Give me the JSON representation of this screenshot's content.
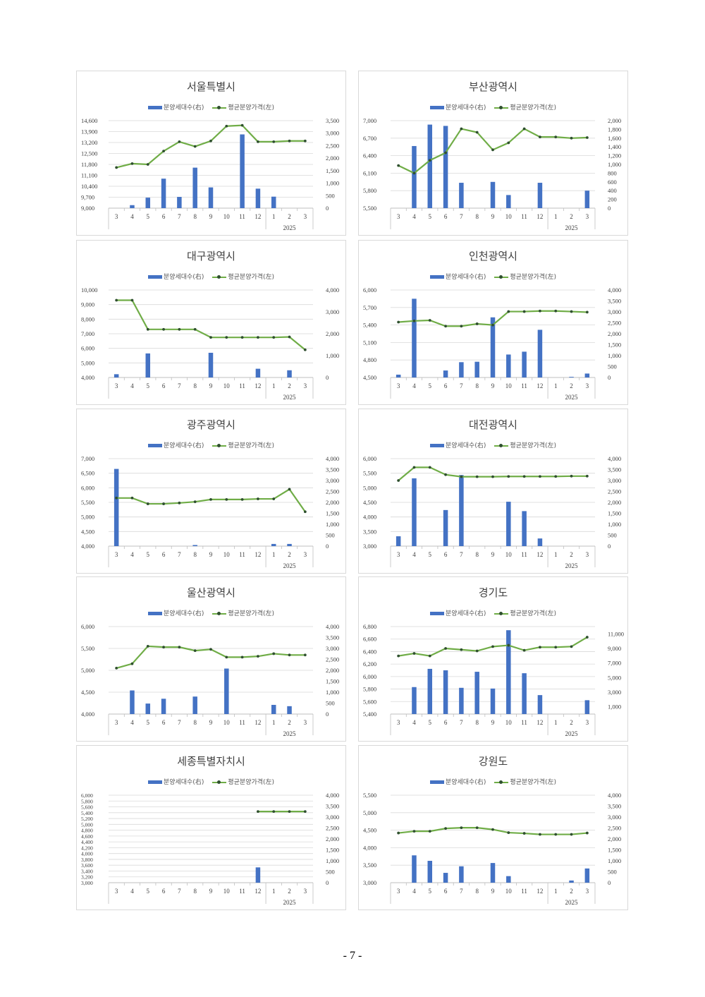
{
  "page_number": "- 7 -",
  "legend": {
    "bar_label": "분양세대수(右)",
    "line_label": "평균분양가격(左)"
  },
  "colors": {
    "bar": "#4472c4",
    "line": "#70ad47",
    "marker": "#2f4f2f",
    "grid": "#d9d9d9"
  },
  "x_ticks": [
    "3",
    "4",
    "5",
    "6",
    "7",
    "8",
    "9",
    "10",
    "11",
    "12",
    "1",
    "2",
    "3"
  ],
  "year_label": "2025",
  "chart_data": [
    {
      "type": "bar+line",
      "title": "서울특별시",
      "left_axis": {
        "min": 9000,
        "max": 14600,
        "ticks": [
          "9,000",
          "9,700",
          "10,400",
          "11,100",
          "11,800",
          "12,500",
          "13,200",
          "13,900",
          "14,600"
        ]
      },
      "right_axis": {
        "min": 0,
        "max": 3500,
        "ticks": [
          "0",
          "500",
          "1,000",
          "1,500",
          "2,000",
          "2,500",
          "3,000",
          "3,500"
        ]
      },
      "series": [
        {
          "name": "분양세대수(右)",
          "axis": "right",
          "values": [
            0,
            120,
            420,
            1180,
            450,
            1620,
            830,
            0,
            2950,
            780,
            460,
            0,
            0
          ]
        },
        {
          "name": "평균분양가격(左)",
          "axis": "left",
          "values": [
            11600,
            11850,
            11800,
            12650,
            13250,
            12950,
            13300,
            14250,
            14300,
            13250,
            13250,
            13300,
            13300
          ]
        }
      ]
    },
    {
      "type": "bar+line",
      "title": "부산광역시",
      "left_axis": {
        "min": 5500,
        "max": 7000,
        "ticks": [
          "5,500",
          "5,800",
          "6,100",
          "6,400",
          "6,700",
          "7,000"
        ]
      },
      "right_axis": {
        "min": 0,
        "max": 2000,
        "ticks": [
          "0",
          "200",
          "400",
          "600",
          "800",
          "1,000",
          "1,200",
          "1,400",
          "1,600",
          "1,800",
          "2,000"
        ]
      },
      "series": [
        {
          "name": "분양세대수(右)",
          "axis": "right",
          "values": [
            0,
            1420,
            1910,
            1880,
            580,
            0,
            600,
            300,
            0,
            580,
            0,
            0,
            400
          ]
        },
        {
          "name": "평균분양가격(左)",
          "axis": "left",
          "values": [
            6230,
            6100,
            6320,
            6450,
            6860,
            6800,
            6500,
            6620,
            6860,
            6720,
            6720,
            6700,
            6710
          ]
        }
      ]
    },
    {
      "type": "bar+line",
      "title": "대구광역시",
      "left_axis": {
        "min": 4000,
        "max": 10000,
        "ticks": [
          "4,000",
          "5,000",
          "6,000",
          "7,000",
          "8,000",
          "9,000",
          "10,000"
        ]
      },
      "right_axis": {
        "min": 0,
        "max": 4000,
        "ticks": [
          "0",
          "1,000",
          "2,000",
          "3,000",
          "4,000"
        ]
      },
      "series": [
        {
          "name": "분양세대수(右)",
          "axis": "right",
          "values": [
            150,
            0,
            1100,
            0,
            0,
            0,
            1130,
            0,
            0,
            400,
            0,
            330,
            0
          ]
        },
        {
          "name": "평균분양가격(左)",
          "axis": "left",
          "values": [
            9300,
            9300,
            7300,
            7300,
            7300,
            7300,
            6750,
            6750,
            6750,
            6750,
            6750,
            6780,
            5900
          ]
        }
      ]
    },
    {
      "type": "bar+line",
      "title": "인천광역시",
      "left_axis": {
        "min": 4500,
        "max": 6000,
        "ticks": [
          "4,500",
          "4,800",
          "5,100",
          "5,400",
          "5,700",
          "6,000"
        ]
      },
      "right_axis": {
        "min": 0,
        "max": 4000,
        "ticks": [
          "0",
          "500",
          "1,000",
          "1,500",
          "2,000",
          "2,500",
          "3,000",
          "3,500",
          "4,000"
        ]
      },
      "series": [
        {
          "name": "분양세대수(右)",
          "axis": "right",
          "values": [
            130,
            3600,
            0,
            320,
            700,
            720,
            2750,
            1050,
            1180,
            2180,
            0,
            30,
            180
          ]
        },
        {
          "name": "평균분양가격(左)",
          "axis": "left",
          "values": [
            5450,
            5470,
            5480,
            5380,
            5380,
            5420,
            5400,
            5630,
            5630,
            5640,
            5640,
            5630,
            5620
          ]
        }
      ]
    },
    {
      "type": "bar+line",
      "title": "광주광역시",
      "left_axis": {
        "min": 4000,
        "max": 7000,
        "ticks": [
          "4,000",
          "4,500",
          "5,000",
          "5,500",
          "6,000",
          "6,500",
          "7,000"
        ]
      },
      "right_axis": {
        "min": 0,
        "max": 4000,
        "ticks": [
          "0",
          "500",
          "1,000",
          "1,500",
          "2,000",
          "2,500",
          "3,000",
          "3,500",
          "4,000"
        ]
      },
      "series": [
        {
          "name": "분양세대수(右)",
          "axis": "right",
          "values": [
            3530,
            0,
            0,
            0,
            0,
            50,
            0,
            0,
            0,
            0,
            100,
            100,
            0
          ]
        },
        {
          "name": "평균분양가격(左)",
          "axis": "left",
          "values": [
            5650,
            5650,
            5450,
            5450,
            5480,
            5520,
            5600,
            5600,
            5600,
            5620,
            5620,
            5950,
            5180
          ]
        }
      ]
    },
    {
      "type": "bar+line",
      "title": "대전광역시",
      "left_axis": {
        "min": 3000,
        "max": 6000,
        "ticks": [
          "3,000",
          "3,500",
          "4,000",
          "4,500",
          "5,000",
          "5,500",
          "6,000"
        ]
      },
      "right_axis": {
        "min": 0,
        "max": 4000,
        "ticks": [
          "0",
          "500",
          "1,000",
          "1,500",
          "2,000",
          "2,500",
          "3,000",
          "3,500",
          "4,000"
        ]
      },
      "series": [
        {
          "name": "분양세대수(右)",
          "axis": "right",
          "values": [
            450,
            3100,
            0,
            1650,
            3250,
            0,
            0,
            2030,
            1600,
            350,
            0,
            0,
            0
          ]
        },
        {
          "name": "평균분양가격(左)",
          "axis": "left",
          "values": [
            5250,
            5700,
            5700,
            5450,
            5380,
            5380,
            5380,
            5390,
            5390,
            5390,
            5390,
            5400,
            5400
          ]
        }
      ]
    },
    {
      "type": "bar+line",
      "title": "울산광역시",
      "left_axis": {
        "min": 4000,
        "max": 6000,
        "ticks": [
          "4,000",
          "4,500",
          "5,000",
          "5,500",
          "6,000"
        ]
      },
      "right_axis": {
        "min": 0,
        "max": 4000,
        "ticks": [
          "0",
          "500",
          "1,000",
          "1,500",
          "2,000",
          "2,500",
          "3,000",
          "3,500",
          "4,000"
        ]
      },
      "series": [
        {
          "name": "분양세대수(右)",
          "axis": "right",
          "values": [
            0,
            1080,
            480,
            700,
            0,
            800,
            0,
            2080,
            0,
            0,
            420,
            360,
            0
          ]
        },
        {
          "name": "평균분양가격(左)",
          "axis": "left",
          "values": [
            5050,
            5150,
            5550,
            5530,
            5530,
            5450,
            5480,
            5300,
            5300,
            5320,
            5380,
            5350,
            5350
          ]
        }
      ]
    },
    {
      "type": "bar+line",
      "title": "경기도",
      "left_axis": {
        "min": 5400,
        "max": 6800,
        "ticks": [
          "5,400",
          "5,600",
          "5,800",
          "6,000",
          "6,200",
          "6,400",
          "6,600",
          "6,800"
        ]
      },
      "right_axis": {
        "min": 0,
        "max": 12000,
        "ticks": [
          "1,000",
          "3,000",
          "5,000",
          "7,000",
          "9,000",
          "11,000"
        ]
      },
      "series": [
        {
          "name": "분양세대수(右)",
          "axis": "right",
          "values": [
            0,
            3700,
            6200,
            6000,
            3600,
            5800,
            3500,
            11500,
            5600,
            2600,
            0,
            0,
            1900
          ]
        },
        {
          "name": "평균분양가격(左)",
          "axis": "left",
          "values": [
            6330,
            6370,
            6330,
            6450,
            6430,
            6410,
            6480,
            6500,
            6420,
            6470,
            6470,
            6480,
            6630
          ]
        }
      ]
    },
    {
      "type": "bar+line",
      "title": "세종특별자치시",
      "left_axis": {
        "min": 3000,
        "max": 6000,
        "ticks": [
          "3,000",
          "3,200",
          "3,400",
          "3,600",
          "3,800",
          "4,000",
          "4,200",
          "4,400",
          "4,600",
          "4,800",
          "5,000",
          "5,200",
          "5,400",
          "5,600",
          "5,800",
          "6,000"
        ]
      },
      "right_axis": {
        "min": 0,
        "max": 4000,
        "ticks": [
          "0",
          "500",
          "1,000",
          "1,500",
          "2,000",
          "2,500",
          "3,000",
          "3,500",
          "4,000"
        ]
      },
      "series": [
        {
          "name": "분양세대수(右)",
          "axis": "right",
          "values": [
            0,
            0,
            0,
            0,
            0,
            0,
            0,
            0,
            0,
            700,
            0,
            0,
            0
          ]
        },
        {
          "name": "평균분양가격(左)",
          "axis": "left",
          "values": [
            null,
            null,
            null,
            null,
            null,
            null,
            null,
            null,
            null,
            5440,
            5440,
            5440,
            5440
          ]
        }
      ]
    },
    {
      "type": "bar+line",
      "title": "강원도",
      "left_axis": {
        "min": 3000,
        "max": 5500,
        "ticks": [
          "3,000",
          "3,500",
          "4,000",
          "4,500",
          "5,000",
          "5,500"
        ]
      },
      "right_axis": {
        "min": 0,
        "max": 4000,
        "ticks": [
          "0",
          "500",
          "1,000",
          "1,500",
          "2,000",
          "2,500",
          "3,000",
          "3,500",
          "4,000"
        ]
      },
      "series": [
        {
          "name": "분양세대수(右)",
          "axis": "right",
          "values": [
            0,
            1250,
            1000,
            450,
            750,
            0,
            900,
            300,
            0,
            0,
            0,
            100,
            650
          ]
        },
        {
          "name": "평균분양가격(左)",
          "axis": "left",
          "values": [
            4420,
            4470,
            4470,
            4550,
            4570,
            4570,
            4520,
            4430,
            4410,
            4380,
            4380,
            4380,
            4420
          ]
        }
      ]
    }
  ]
}
